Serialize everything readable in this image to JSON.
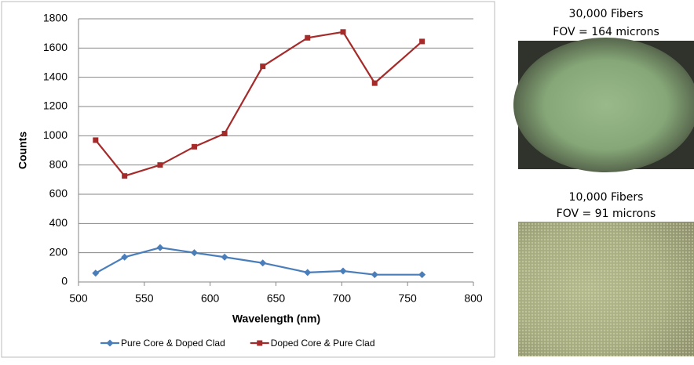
{
  "chart_data": {
    "type": "line",
    "x_label": "Wavelength (nm)",
    "y_label": "Counts",
    "series": [
      {
        "name": "Pure Core & Doped Clad",
        "color": "#4a7ebb",
        "marker": "diamond",
        "x": [
          513,
          535,
          562,
          588,
          611,
          640,
          674,
          701,
          725,
          761
        ],
        "values": [
          60,
          170,
          235,
          200,
          170,
          130,
          65,
          75,
          50,
          50
        ]
      },
      {
        "name": "Doped Core & Pure Clad",
        "color": "#a52a2a",
        "marker": "square",
        "x": [
          513,
          535,
          562,
          588,
          611,
          640,
          674,
          701,
          725,
          761
        ],
        "values": [
          970,
          725,
          800,
          925,
          1015,
          1475,
          1670,
          1710,
          1360,
          1645
        ]
      }
    ],
    "xlim": [
      500,
      800
    ],
    "xticks": [
      500,
      550,
      600,
      650,
      700,
      750,
      800
    ],
    "ylim": [
      0,
      1800
    ],
    "yticks": [
      0,
      200,
      400,
      600,
      800,
      1000,
      1200,
      1400,
      1600,
      1800
    ],
    "grid": true,
    "legend": "bottom"
  },
  "images": [
    {
      "title": "30,000 Fibers",
      "caption": "FOV = 164 microns"
    },
    {
      "title": "10,000 Fibers",
      "caption": "FOV = 91 microns"
    }
  ]
}
